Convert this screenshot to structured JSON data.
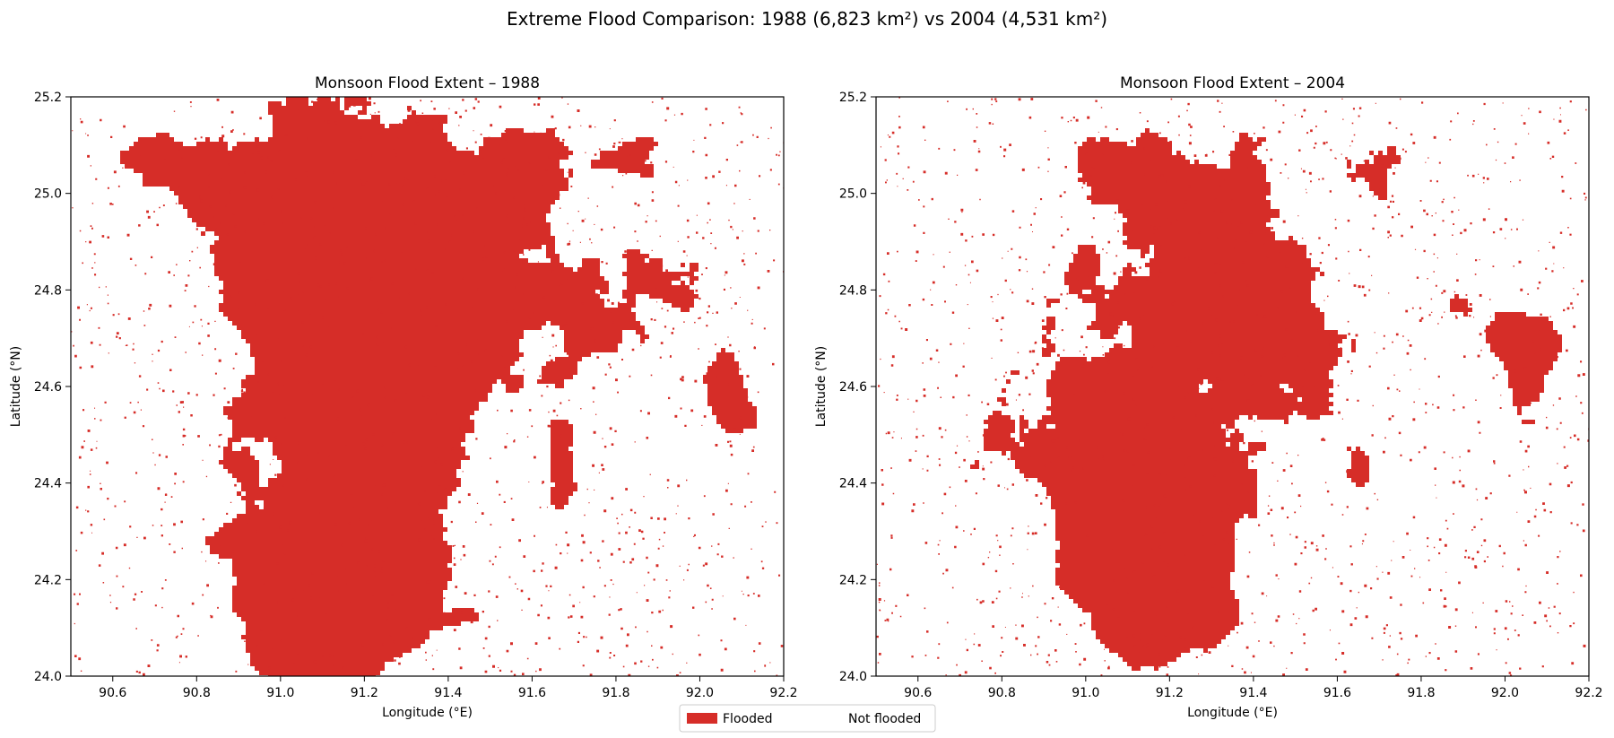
{
  "suptitle": "Extreme Flood Comparison: 1988 (6,823 km²) vs 2004 (4,531 km²)",
  "colors": {
    "flooded": "#d62d28",
    "not_flooded": "#ffffff",
    "axes": "#000000"
  },
  "legend": {
    "placement": "bottom-center",
    "items": [
      {
        "label": "Flooded",
        "color": "#d62d28"
      },
      {
        "label": "Not flooded",
        "color": "#ffffff"
      }
    ]
  },
  "panels": [
    {
      "title": "Monsoon Flood Extent – 1988",
      "year": 1988,
      "flooded_area_km2": 6823,
      "xlabel": "Longitude (°E)",
      "ylabel": "Latitude (°N)",
      "xlim": [
        90.5,
        92.2
      ],
      "ylim": [
        24.0,
        25.2
      ],
      "xticks": [
        "90.6",
        "90.8",
        "91.0",
        "91.2",
        "91.4",
        "91.6",
        "91.8",
        "92.0",
        "92.2"
      ],
      "yticks": [
        "24.0",
        "24.2",
        "24.4",
        "24.6",
        "24.8",
        "25.0",
        "25.2"
      ]
    },
    {
      "title": "Monsoon Flood Extent – 2004",
      "year": 2004,
      "flooded_area_km2": 4531,
      "xlabel": "Longitude (°E)",
      "ylabel": "Latitude (°N)",
      "xlim": [
        90.5,
        92.2
      ],
      "ylim": [
        24.0,
        25.2
      ],
      "xticks": [
        "90.6",
        "90.8",
        "91.0",
        "91.2",
        "91.4",
        "91.6",
        "91.8",
        "92.0",
        "92.2"
      ],
      "yticks": [
        "24.0",
        "24.2",
        "24.4",
        "24.6",
        "24.8",
        "25.0",
        "25.2"
      ]
    }
  ]
}
